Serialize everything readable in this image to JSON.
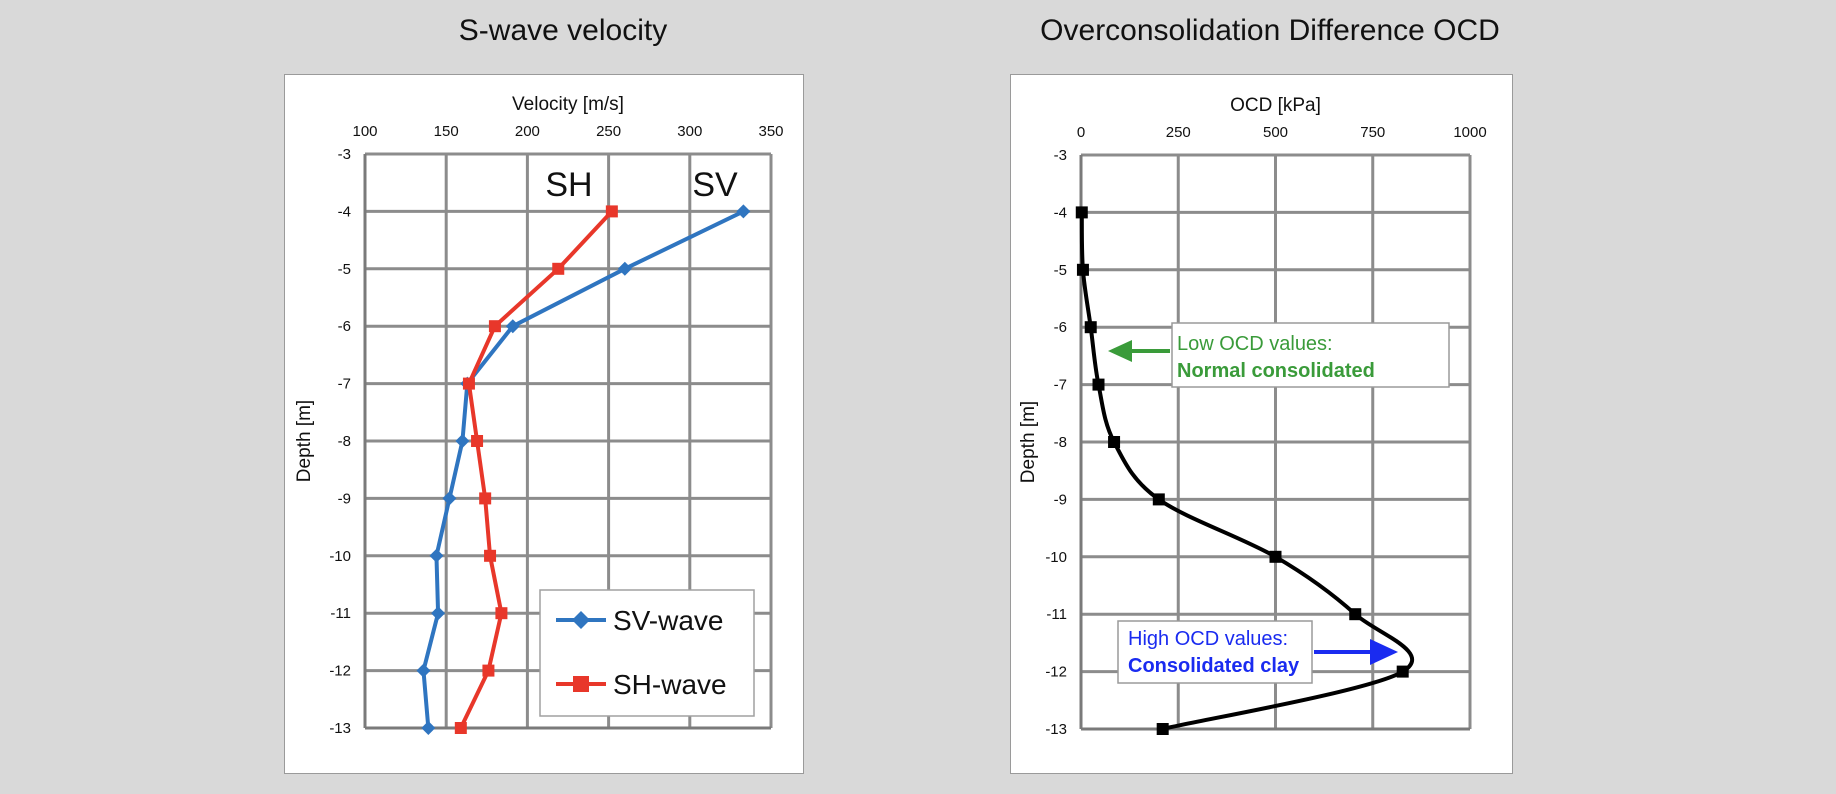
{
  "chart_data": [
    {
      "type": "line",
      "title": "S-wave velocity",
      "xlabel": "Velocity [m/s]",
      "ylabel": "Depth [m]",
      "xlim": [
        100,
        350
      ],
      "ylim": [
        -13,
        -3
      ],
      "xticks": [
        "100",
        "150",
        "200",
        "250",
        "300",
        "350"
      ],
      "yticks": [
        "-3",
        "-4",
        "-5",
        "-6",
        "-7",
        "-8",
        "-9",
        "-10",
        "-11",
        "-12",
        "-13"
      ],
      "grid": true,
      "legend_position": "bottom-right",
      "series": [
        {
          "name": "SV-wave",
          "marker": "diamond",
          "color": "#2f75c0",
          "x": [
            333,
            260,
            191,
            163,
            160,
            152,
            144,
            145,
            136,
            139
          ],
          "y": [
            -4,
            -5,
            -6,
            -7,
            -8,
            -9,
            -10,
            -11,
            -12,
            -13
          ]
        },
        {
          "name": "SH-wave",
          "marker": "square",
          "color": "#e8372a",
          "x": [
            252,
            219,
            180,
            164,
            169,
            174,
            177,
            184,
            176,
            159
          ],
          "y": [
            -4,
            -5,
            -6,
            -7,
            -8,
            -9,
            -10,
            -11,
            -12,
            -13
          ]
        }
      ],
      "annotations": [
        "SH",
        "SV"
      ]
    },
    {
      "type": "line",
      "title": "Overconsolidation Difference OCD",
      "xlabel": "OCD  [kPa]",
      "ylabel": "Depth [m]",
      "xlim": [
        0,
        1000
      ],
      "ylim": [
        -13,
        -3
      ],
      "xticks": [
        "0",
        "250",
        "500",
        "750",
        "1000"
      ],
      "yticks": [
        "-3",
        "-4",
        "-5",
        "-6",
        "-7",
        "-8",
        "-9",
        "-10",
        "-11",
        "-12",
        "-13"
      ],
      "grid": true,
      "series": [
        {
          "name": "OCD",
          "marker": "square",
          "color": "#000000",
          "x": [
            2,
            5,
            25,
            45,
            85,
            200,
            500,
            705,
            827,
            210
          ],
          "y": [
            -4,
            -5,
            -6,
            -7,
            -8,
            -9,
            -10,
            -11,
            -12,
            -13
          ]
        }
      ],
      "callouts": [
        {
          "line1": "Low OCD values:",
          "line2": "Normal consolidated",
          "color": "#3a9b3a"
        },
        {
          "line1": "High OCD values:",
          "line2": "Consolidated clay",
          "color": "#1a2bf0"
        }
      ]
    }
  ]
}
